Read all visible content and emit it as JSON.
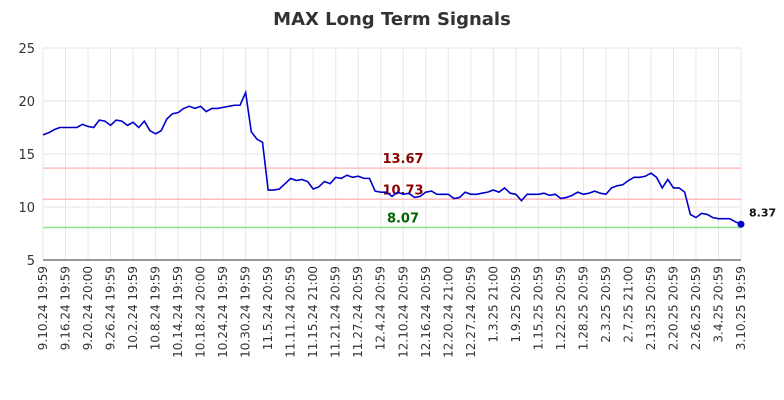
{
  "chart_data": {
    "type": "line",
    "title": "MAX Long Term Signals",
    "categories": [
      "9.10.24 19:59",
      null,
      null,
      null,
      "9.16.24 19:59",
      null,
      null,
      null,
      "9.20.24 20:00",
      null,
      null,
      null,
      "9.26.24 19:59",
      null,
      null,
      null,
      "10.2.24 19:59",
      null,
      null,
      null,
      "10.8.24 19:59",
      null,
      null,
      null,
      "10.14.24 19:59",
      null,
      null,
      null,
      "10.18.24 20:00",
      null,
      null,
      null,
      "10.24.24 19:59",
      null,
      null,
      null,
      "10.30.24 19:59",
      null,
      null,
      null,
      "11.5.24 20:59",
      null,
      null,
      null,
      "11.11.24 20:59",
      null,
      null,
      null,
      "11.15.24 21:00",
      null,
      null,
      null,
      "11.21.24 20:59",
      null,
      null,
      null,
      "11.27.24 20:59",
      null,
      null,
      null,
      "12.4.24 20:59",
      null,
      null,
      null,
      "12.10.24 20:59",
      null,
      null,
      null,
      "12.16.24 20:59",
      null,
      null,
      null,
      "12.20.24 21:00",
      null,
      null,
      null,
      "12.27.24 20:59",
      null,
      null,
      null,
      "1.3.25 21:00",
      null,
      null,
      null,
      "1.9.25 20:59",
      null,
      null,
      null,
      "1.15.25 20:59",
      null,
      null,
      null,
      "1.22.25 20:59",
      null,
      null,
      null,
      "1.28.25 20:59",
      null,
      null,
      null,
      "2.3.25 20:59",
      null,
      null,
      null,
      "2.7.25 21:00",
      null,
      null,
      null,
      "2.13.25 20:59",
      null,
      null,
      null,
      "2.20.25 20:59",
      null,
      null,
      null,
      "2.26.25 20:59",
      null,
      null,
      null,
      "3.4.25 20:59",
      null,
      null,
      null,
      "3.10.25 19:59"
    ],
    "values": [
      16.8,
      17.0,
      17.3,
      17.5,
      17.5,
      17.5,
      17.5,
      17.8,
      17.6,
      17.5,
      18.2,
      18.1,
      17.7,
      18.2,
      18.1,
      17.7,
      18.0,
      17.5,
      18.1,
      17.2,
      16.9,
      17.2,
      18.3,
      18.8,
      18.9,
      19.3,
      19.5,
      19.3,
      19.5,
      19.0,
      19.3,
      19.3,
      19.4,
      19.5,
      19.6,
      19.6,
      20.8,
      17.1,
      16.4,
      16.1,
      11.6,
      11.6,
      11.7,
      12.2,
      12.7,
      12.5,
      12.6,
      12.4,
      11.7,
      11.9,
      12.4,
      12.2,
      12.8,
      12.7,
      13.0,
      12.8,
      12.9,
      12.7,
      12.7,
      11.5,
      11.4,
      11.4,
      11.0,
      11.4,
      11.2,
      11.3,
      10.9,
      11.0,
      11.4,
      11.5,
      11.2,
      11.2,
      11.2,
      10.8,
      10.9,
      11.4,
      11.2,
      11.2,
      11.3,
      11.4,
      11.6,
      11.4,
      11.8,
      11.3,
      11.2,
      10.6,
      11.2,
      11.2,
      11.2,
      11.3,
      11.1,
      11.2,
      10.8,
      10.9,
      11.1,
      11.4,
      11.2,
      11.3,
      11.5,
      11.3,
      11.2,
      11.8,
      12.0,
      12.1,
      12.5,
      12.8,
      12.8,
      12.9,
      13.2,
      12.8,
      11.8,
      12.6,
      11.8,
      11.8,
      11.4,
      9.3,
      9.0,
      9.4,
      9.3,
      9.0,
      8.9,
      8.9,
      8.9,
      8.6,
      8.37
    ],
    "color": "#0000cc",
    "hlines": [
      {
        "value": 13.67,
        "color": "#ffbbbb",
        "label_color": "#8b0000"
      },
      {
        "value": 10.73,
        "color": "#ffbbbb",
        "label_color": "#8b0000"
      },
      {
        "value": 8.07,
        "color": "#88e088",
        "label_color": "#006400"
      }
    ],
    "ylim": [
      5,
      25
    ],
    "yticks": [
      5,
      10,
      15,
      20,
      25
    ],
    "grid": true
  }
}
